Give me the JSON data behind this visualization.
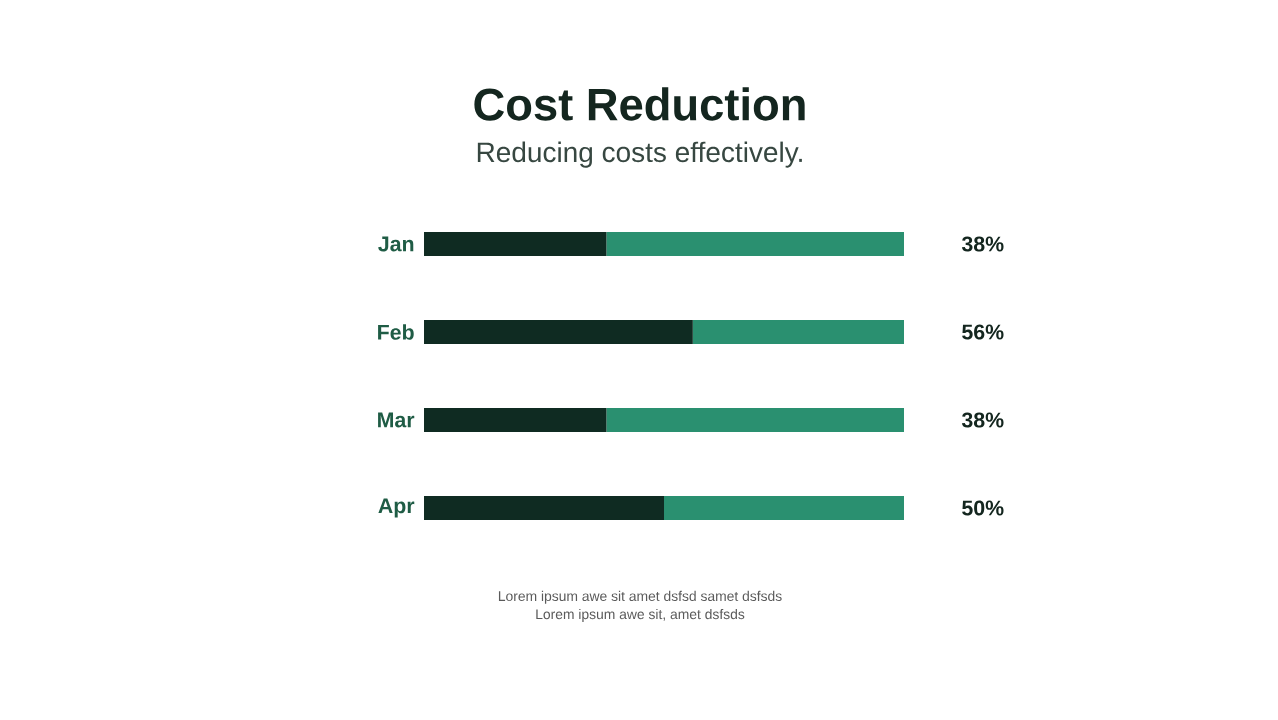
{
  "chart_data": {
    "type": "bar",
    "orientation": "horizontal",
    "stacked": true,
    "title": "Cost Reduction",
    "subtitle": "Reducing costs effectively.",
    "categories": [
      "Jan",
      "Feb",
      "Mar",
      "Apr"
    ],
    "series": [
      {
        "color": "#0f2b22",
        "values": [
          38,
          56,
          38,
          50
        ],
        "value_labels": [
          "38%",
          "56%",
          "38%",
          "50%"
        ]
      },
      {
        "color": "#2a9070",
        "values": [
          62,
          44,
          62,
          50
        ]
      }
    ],
    "tick_labels": "y",
    "annotations": [
      "Lorem ipsum awe sit amet dsfsd samet dsfsds",
      "Lorem ipsum awe sit, amet dsfsds"
    ]
  }
}
